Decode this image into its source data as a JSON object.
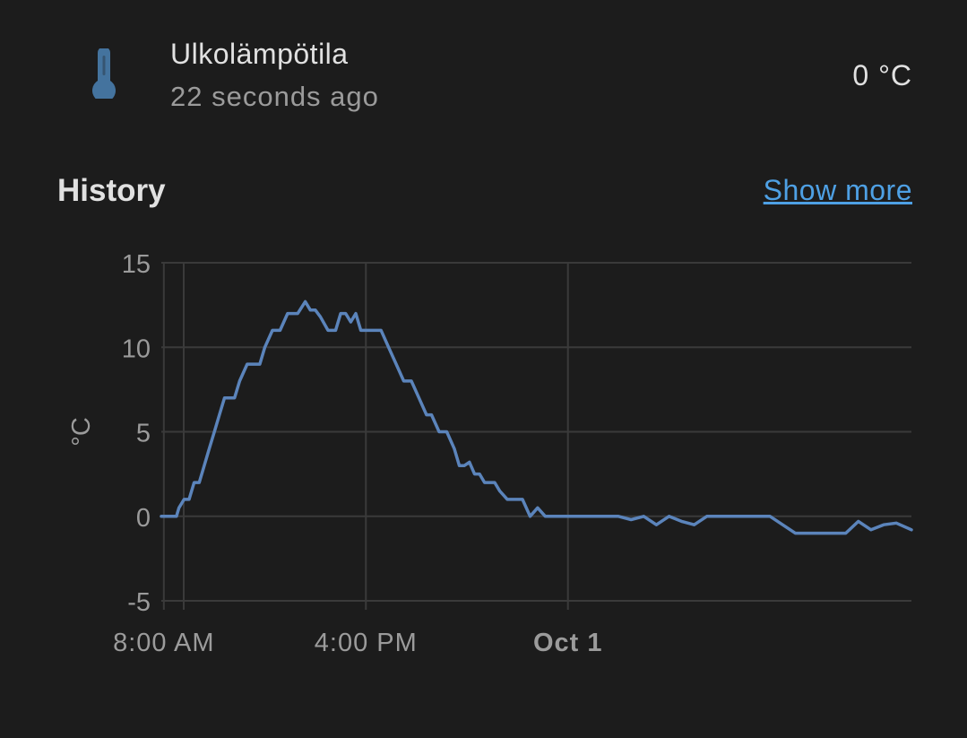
{
  "entity": {
    "name": "Ulkolämpötila",
    "last_changed": "22 seconds ago",
    "state": "0 °C",
    "icon": "thermometer-icon",
    "icon_color": "#44739e"
  },
  "history": {
    "title": "History",
    "show_more_label": "Show more",
    "link_color": "#4ea0e4"
  },
  "chart_data": {
    "type": "line",
    "ylabel": "°C",
    "ylim": [
      -5,
      15
    ],
    "yticks": [
      15,
      10,
      5,
      0,
      -5
    ],
    "xlim": [
      7.9,
      37.6
    ],
    "xticks": [
      {
        "x": 8,
        "label": "8:00 AM",
        "bold": false
      },
      {
        "x": 16,
        "label": "4:00 PM",
        "bold": false
      },
      {
        "x": 24,
        "label": "Oct 1",
        "bold": true
      }
    ],
    "grid": true,
    "line_color": "#5b84bb",
    "series": [
      {
        "x": [
          7.9,
          8.5,
          8.6,
          8.8,
          9.0,
          9.2,
          9.4,
          9.6,
          9.8,
          10.0,
          10.2,
          10.4,
          10.6,
          10.8,
          11.0,
          11.3,
          11.5,
          11.8,
          12.0,
          12.3,
          12.6,
          12.9,
          13.1,
          13.3,
          13.6,
          13.8,
          14.0,
          14.2,
          14.5,
          14.8,
          15.0,
          15.2,
          15.4,
          15.6,
          15.8,
          16.0,
          16.3,
          16.6,
          16.9,
          17.2,
          17.5,
          17.8,
          18.1,
          18.4,
          18.6,
          18.9,
          19.2,
          19.5,
          19.7,
          19.9,
          20.1,
          20.3,
          20.5,
          20.7,
          20.9,
          21.1,
          21.3,
          21.6,
          21.9,
          22.2,
          22.5,
          22.8,
          23.1,
          23.4,
          23.7,
          24.0,
          24.5,
          25.0,
          25.5,
          26.0,
          26.5,
          27.0,
          27.5,
          28.0,
          28.5,
          29.0,
          29.5,
          30.0,
          30.5,
          31.0,
          31.5,
          32.0,
          32.5,
          33.0,
          33.5,
          34.0,
          34.5,
          35.0,
          35.5,
          36.0,
          36.5,
          37.0,
          37.6
        ],
        "values": [
          0,
          0,
          0.5,
          1,
          1,
          2,
          2,
          3,
          4,
          5,
          6,
          7,
          7,
          7,
          8,
          9,
          9,
          9,
          10,
          11,
          11,
          12,
          12,
          12,
          12.7,
          12.2,
          12.2,
          11.8,
          11,
          11,
          12,
          12,
          11.5,
          12,
          11,
          11,
          11,
          11,
          10,
          9,
          8,
          8,
          7,
          6,
          6,
          5,
          5,
          4,
          3,
          3,
          3.2,
          2.5,
          2.5,
          2,
          2,
          2,
          1.5,
          1,
          1,
          1,
          0,
          0.5,
          0,
          0,
          0,
          0,
          0,
          0,
          0,
          0,
          -0.2,
          0,
          -0.5,
          0,
          -0.3,
          -0.5,
          0,
          0,
          0,
          0,
          0,
          0,
          -0.5,
          -1,
          -1,
          -1,
          -1,
          -1,
          -0.3,
          -0.8,
          -0.5,
          -0.4,
          -0.8
        ]
      }
    ]
  }
}
